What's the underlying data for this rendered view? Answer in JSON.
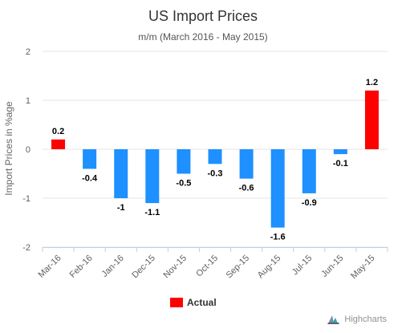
{
  "chart_data": {
    "type": "bar",
    "title": "US Import Prices",
    "subtitle": "m/m (March 2016 - May 2015)",
    "xlabel": "",
    "ylabel": "Import Prices in %age",
    "categories": [
      "Mar-16",
      "Feb-16",
      "Jan-16",
      "Dec-15",
      "Nov-15",
      "Oct-15",
      "Sep-15",
      "Aug-15",
      "Jul-15",
      "Jun-15",
      "May-15"
    ],
    "series": [
      {
        "name": "Actual",
        "values": [
          0.2,
          -0.4,
          -1,
          -1.1,
          -0.5,
          -0.3,
          -0.6,
          -1.6,
          -0.9,
          -0.1,
          1.2
        ]
      }
    ],
    "data_labels": [
      "0.2",
      "-0.4",
      "-1",
      "-1.1",
      "-0.5",
      "-0.3",
      "-0.6",
      "-1.6",
      "-0.9",
      "-0.1",
      "1.2"
    ],
    "ylim": [
      -2,
      2
    ],
    "yticks": [
      -2,
      -1,
      0,
      1,
      2
    ],
    "grid": true,
    "legend_position": "bottom-center",
    "colors": {
      "positive": "#ff0000",
      "negative": "#1e90ff",
      "grid": "#e6e6e6",
      "axis": "#c0d0e0"
    }
  },
  "legend": {
    "label": "Actual",
    "color": "#ff0000"
  },
  "credits": {
    "text": "Highcharts",
    "icon": "highcharts-logo-icon"
  }
}
